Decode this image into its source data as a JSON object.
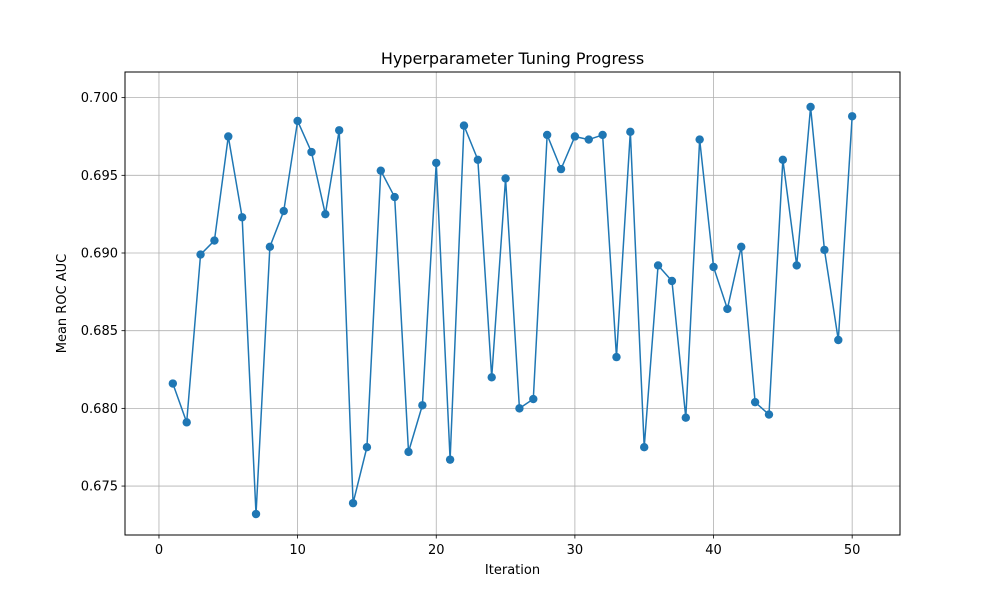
{
  "chart_data": {
    "type": "line",
    "title": "Hyperparameter Tuning Progress",
    "xlabel": "Iteration",
    "ylabel": "Mean ROC AUC",
    "xlim": [
      -2.45,
      53.45
    ],
    "ylim": [
      0.67185,
      0.70165
    ],
    "x_ticks": [
      0,
      10,
      20,
      30,
      40,
      50
    ],
    "x_tick_labels": [
      "0",
      "10",
      "20",
      "30",
      "40",
      "50"
    ],
    "y_ticks": [
      0.675,
      0.68,
      0.685,
      0.69,
      0.695,
      0.7
    ],
    "y_tick_labels": [
      "0.675",
      "0.680",
      "0.685",
      "0.690",
      "0.695",
      "0.700"
    ],
    "grid": true,
    "legend": "none",
    "series_color": "#1f77b4",
    "marker": "circle",
    "x": [
      1,
      2,
      3,
      4,
      5,
      6,
      7,
      8,
      9,
      10,
      11,
      12,
      13,
      14,
      15,
      16,
      17,
      18,
      19,
      20,
      21,
      22,
      23,
      24,
      25,
      26,
      27,
      28,
      29,
      30,
      31,
      32,
      33,
      34,
      35,
      36,
      37,
      38,
      39,
      40,
      41,
      42,
      43,
      44,
      45,
      46,
      47,
      48,
      49,
      50
    ],
    "y": [
      0.6816,
      0.6791,
      0.6899,
      0.6908,
      0.6975,
      0.6923,
      0.6732,
      0.6904,
      0.6927,
      0.6985,
      0.6965,
      0.6925,
      0.6979,
      0.6739,
      0.6775,
      0.6953,
      0.6936,
      0.6772,
      0.6802,
      0.6958,
      0.6767,
      0.6982,
      0.696,
      0.682,
      0.6948,
      0.68,
      0.6806,
      0.6976,
      0.6954,
      0.6975,
      0.6973,
      0.6976,
      0.6833,
      0.6978,
      0.6775,
      0.6892,
      0.6882,
      0.6794,
      0.6973,
      0.6891,
      0.6864,
      0.6904,
      0.6804,
      0.6796,
      0.696,
      0.6892,
      0.6994,
      0.6902,
      0.6844,
      0.6988
    ]
  }
}
